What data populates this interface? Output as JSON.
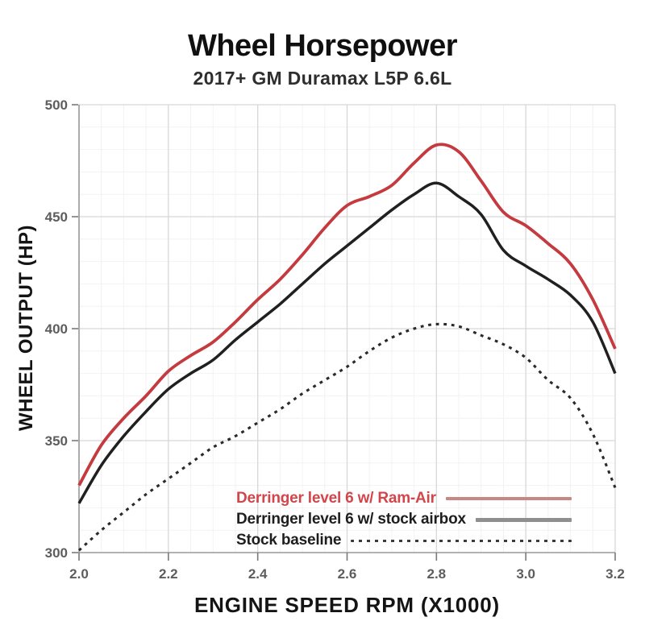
{
  "chart_data": {
    "type": "line",
    "title": "Wheel Horsepower",
    "subtitle": "2017+ GM Duramax L5P 6.6L",
    "xlabel": "ENGINE SPEED RPM (X1000)",
    "ylabel": "WHEEL OUTPUT (HP)",
    "xlim": [
      2.0,
      3.2
    ],
    "ylim": [
      300,
      500
    ],
    "x_ticks": [
      "2.0",
      "2.2",
      "2.4",
      "2.6",
      "2.8",
      "3.0",
      "3.2"
    ],
    "y_ticks": [
      "300",
      "350",
      "400",
      "450",
      "500"
    ],
    "grid": true,
    "legend_position": "inside-bottom-right",
    "x": [
      2.0,
      2.05,
      2.1,
      2.15,
      2.2,
      2.25,
      2.3,
      2.35,
      2.4,
      2.45,
      2.5,
      2.55,
      2.6,
      2.65,
      2.7,
      2.75,
      2.8,
      2.85,
      2.9,
      2.95,
      3.0,
      3.05,
      3.1,
      3.15,
      3.2
    ],
    "series": [
      {
        "name": "Derringer level 6 w/ Ram-Air",
        "style": "solid",
        "color": "#c43a3f",
        "legend_line_color": "#c98784",
        "text_color": "#d2454b",
        "peak_hp": 482,
        "values": [
          330,
          348,
          360,
          370,
          381,
          388,
          394,
          403,
          413,
          422,
          433,
          445,
          455,
          459,
          464,
          474,
          482,
          479,
          466,
          452,
          446,
          438,
          429,
          413,
          391
        ]
      },
      {
        "name": "Derringer level 6 w/ stock airbox",
        "style": "solid",
        "color": "#202020",
        "legend_line_color": "#8f8f8f",
        "text_color": "#1e1e1e",
        "peak_hp": 465,
        "values": [
          322,
          339,
          352,
          363,
          373,
          380,
          386,
          395,
          403,
          411,
          420,
          429,
          437,
          445,
          453,
          460,
          465,
          459,
          451,
          435,
          428,
          422,
          415,
          403,
          380
        ]
      },
      {
        "name": "Stock baseline",
        "style": "dashed",
        "color": "#2a2a2a",
        "legend_line_color": "#3a3a3a",
        "text_color": "#1e1e1e",
        "peak_hp": 402,
        "values": [
          301,
          310,
          318,
          326,
          333,
          340,
          347,
          352,
          358,
          364,
          371,
          377,
          383,
          390,
          396,
          400,
          402,
          401,
          397,
          393,
          387,
          377,
          369,
          353,
          329
        ]
      }
    ]
  },
  "theme": {
    "grid_color": "#d7d7d7",
    "minor_grid_color": "#f2f2f2",
    "spine_color": "#9b9b9b",
    "tick_color": "#7a7a7a",
    "background": "#ffffff"
  }
}
